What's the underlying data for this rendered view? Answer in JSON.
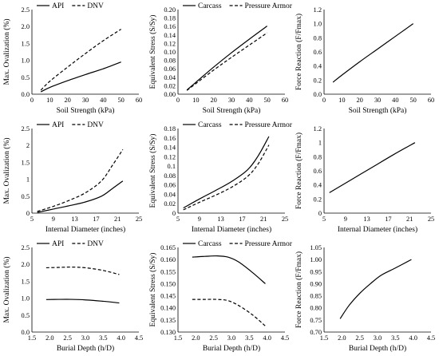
{
  "chart_data": [
    {
      "type": "line",
      "xlabel": "Soil Strength (kPa)",
      "ylabel": "Max. Ovalization (%)",
      "xlim": [
        0,
        60
      ],
      "ylim": [
        0,
        2.5
      ],
      "xticks": [
        0,
        10,
        20,
        30,
        40,
        50,
        60
      ],
      "yticks": [
        0,
        0.5,
        1,
        1.5,
        2,
        2.5
      ],
      "ytick_labels": [
        "0.0",
        "0.5",
        "1.0",
        "1.5",
        "2.0",
        "2.5"
      ],
      "grid": false,
      "legend_position": "top",
      "series": [
        {
          "name": "API",
          "dash": "solid",
          "x": [
            5,
            10,
            20,
            30,
            40,
            50
          ],
          "y": [
            0.07,
            0.2,
            0.4,
            0.58,
            0.75,
            0.95
          ]
        },
        {
          "name": "DNV",
          "dash": "dashed",
          "x": [
            5,
            10,
            20,
            30,
            40,
            50
          ],
          "y": [
            0.12,
            0.38,
            0.8,
            1.2,
            1.58,
            1.92
          ]
        }
      ]
    },
    {
      "type": "line",
      "xlabel": "Soil Strength (kPa)",
      "ylabel": "Equivalent Stress (S/Sy)",
      "xlim": [
        0,
        60
      ],
      "ylim": [
        0,
        0.2
      ],
      "xticks": [
        0,
        10,
        20,
        30,
        40,
        50,
        60
      ],
      "yticks": [
        0,
        0.02,
        0.04,
        0.06,
        0.08,
        0.1,
        0.12,
        0.14,
        0.16,
        0.18,
        0.2
      ],
      "ytick_labels": [
        "0.00",
        "0.02",
        "0.04",
        "0.06",
        "0.08",
        "0.10",
        "0.12",
        "0.14",
        "0.16",
        "0.18",
        "0.20"
      ],
      "grid": false,
      "legend_position": "top",
      "series": [
        {
          "name": "Carcass",
          "dash": "solid",
          "x": [
            5,
            10,
            20,
            30,
            40,
            50
          ],
          "y": [
            0.01,
            0.028,
            0.064,
            0.098,
            0.13,
            0.161
          ]
        },
        {
          "name": "Pressure Armor",
          "dash": "dashed",
          "x": [
            5,
            10,
            20,
            30,
            40,
            50
          ],
          "y": [
            0.009,
            0.025,
            0.057,
            0.087,
            0.116,
            0.145
          ]
        }
      ]
    },
    {
      "type": "line",
      "xlabel": "Soil Strength (kPa)",
      "ylabel": "Force Reaction (F/Fmax)",
      "xlim": [
        0,
        60
      ],
      "ylim": [
        0,
        1.2
      ],
      "xticks": [
        0,
        10,
        20,
        30,
        40,
        50,
        60
      ],
      "yticks": [
        0,
        0.2,
        0.4,
        0.6,
        0.8,
        1,
        1.2
      ],
      "ytick_labels": [
        "0.0",
        "0.2",
        "0.4",
        "0.6",
        "0.8",
        "1.0",
        "1.2"
      ],
      "grid": false,
      "series": [
        {
          "name": "",
          "dash": "solid",
          "x": [
            5,
            10,
            20,
            30,
            40,
            50
          ],
          "y": [
            0.17,
            0.27,
            0.46,
            0.64,
            0.82,
            1.0
          ]
        }
      ]
    },
    {
      "type": "line",
      "xlabel": "Internal Diameter (inches)",
      "ylabel": "Max. Ovalization (%)",
      "xlim": [
        5,
        25
      ],
      "ylim": [
        0,
        2.5
      ],
      "xticks": [
        5,
        9,
        13,
        17,
        21,
        25
      ],
      "yticks": [
        0,
        0.5,
        1,
        1.5,
        2,
        2.5
      ],
      "ytick_labels": [
        "0",
        "0.5",
        "1",
        "1.5",
        "2",
        "2.5"
      ],
      "grid": false,
      "legend_position": "top",
      "series": [
        {
          "name": "API",
          "dash": "solid",
          "x": [
            6,
            9,
            12,
            15,
            18,
            20,
            22
          ],
          "y": [
            0.02,
            0.12,
            0.22,
            0.33,
            0.5,
            0.72,
            0.95
          ]
        },
        {
          "name": "DNV",
          "dash": "dashed",
          "x": [
            6,
            9,
            12,
            15,
            18,
            20,
            22
          ],
          "y": [
            0.05,
            0.2,
            0.38,
            0.6,
            0.95,
            1.4,
            1.88
          ]
        }
      ]
    },
    {
      "type": "line",
      "xlabel": "Internal Diameter (inches)",
      "ylabel": "Equivalent Stress (S/Sy)",
      "xlim": [
        5,
        25
      ],
      "ylim": [
        0,
        0.18
      ],
      "xticks": [
        5,
        9,
        13,
        17,
        21,
        25
      ],
      "yticks": [
        0,
        0.02,
        0.04,
        0.06,
        0.08,
        0.1,
        0.12,
        0.14,
        0.16,
        0.18
      ],
      "ytick_labels": [
        "0",
        "0.02",
        "0.04",
        "0.06",
        "0.08",
        "0.1",
        "0.12",
        "0.14",
        "0.16",
        "0.18"
      ],
      "grid": false,
      "legend_position": "top",
      "series": [
        {
          "name": "Carcass",
          "dash": "solid",
          "x": [
            6,
            9,
            12,
            15,
            18,
            20,
            22
          ],
          "y": [
            0.011,
            0.03,
            0.048,
            0.067,
            0.092,
            0.122,
            0.163
          ]
        },
        {
          "name": "Pressure Armor",
          "dash": "dashed",
          "x": [
            6,
            9,
            12,
            15,
            18,
            20,
            22
          ],
          "y": [
            0.007,
            0.023,
            0.038,
            0.055,
            0.078,
            0.105,
            0.145
          ]
        }
      ]
    },
    {
      "type": "line",
      "xlabel": "Internal Diameter (inches)",
      "ylabel": "Force Reaction (F/Fmax)",
      "xlim": [
        5,
        25
      ],
      "ylim": [
        0,
        1.2
      ],
      "xticks": [
        5,
        9,
        13,
        17,
        21,
        25
      ],
      "yticks": [
        0,
        0.2,
        0.4,
        0.6,
        0.8,
        1,
        1.2
      ],
      "ytick_labels": [
        "0",
        "0.2",
        "0.4",
        "0.6",
        "0.8",
        "1",
        "1.2"
      ],
      "grid": false,
      "series": [
        {
          "name": "",
          "dash": "solid",
          "x": [
            6,
            10,
            14,
            18,
            22
          ],
          "y": [
            0.29,
            0.47,
            0.65,
            0.83,
            1.0
          ]
        }
      ]
    },
    {
      "type": "line",
      "xlabel": "Burial Depth (h/D)",
      "ylabel": "Max. Ovalization (%)",
      "xlim": [
        1.5,
        4.5
      ],
      "ylim": [
        0,
        2.5
      ],
      "xticks": [
        1.5,
        2,
        2.5,
        3,
        3.5,
        4,
        4.5
      ],
      "xtick_labels": [
        "1.5",
        "2.0",
        "2.5",
        "3.0",
        "3.5",
        "4.0",
        "4.5"
      ],
      "yticks": [
        0,
        0.5,
        1,
        1.5,
        2,
        2.5
      ],
      "ytick_labels": [
        "0.0",
        "0.5",
        "1.0",
        "1.5",
        "2.0",
        "2.5"
      ],
      "grid": false,
      "legend_position": "top",
      "series": [
        {
          "name": "API",
          "dash": "solid",
          "x": [
            1.9,
            2.25,
            2.6,
            3.0,
            3.5,
            3.95
          ],
          "y": [
            0.96,
            0.965,
            0.965,
            0.95,
            0.91,
            0.86
          ]
        },
        {
          "name": "DNV",
          "dash": "dashed",
          "x": [
            1.9,
            2.25,
            2.6,
            3.0,
            3.5,
            3.95
          ],
          "y": [
            1.9,
            1.91,
            1.92,
            1.9,
            1.82,
            1.7
          ]
        }
      ]
    },
    {
      "type": "line",
      "xlabel": "Burial Depth (h/D)",
      "ylabel": "Equivalent Stress (S/Sy)",
      "xlim": [
        1.5,
        4.5
      ],
      "ylim": [
        0.13,
        0.165
      ],
      "xticks": [
        1.5,
        2,
        2.5,
        3,
        3.5,
        4,
        4.5
      ],
      "xtick_labels": [
        "1.5",
        "2.0",
        "2.5",
        "3.0",
        "3.5",
        "4.0",
        "4.5"
      ],
      "yticks": [
        0.13,
        0.135,
        0.14,
        0.145,
        0.15,
        0.155,
        0.16,
        0.165
      ],
      "ytick_labels": [
        "0.130",
        "0.135",
        "0.140",
        "0.145",
        "0.150",
        "0.155",
        "0.160",
        "0.165"
      ],
      "grid": false,
      "legend_position": "top",
      "series": [
        {
          "name": "Carcass",
          "dash": "solid",
          "x": [
            1.9,
            2.25,
            2.6,
            2.9,
            3.2,
            3.6,
            3.95
          ],
          "y": [
            0.161,
            0.1613,
            0.1615,
            0.161,
            0.159,
            0.1545,
            0.15
          ]
        },
        {
          "name": "Pressure Armor",
          "dash": "dashed",
          "x": [
            1.9,
            2.25,
            2.6,
            2.9,
            3.2,
            3.6,
            3.95
          ],
          "y": [
            0.1435,
            0.1435,
            0.1435,
            0.143,
            0.141,
            0.137,
            0.1325
          ]
        }
      ]
    },
    {
      "type": "line",
      "xlabel": "Burial Depth (h/D)",
      "ylabel": "Force Reaction (F/Fmax)",
      "xlim": [
        1.5,
        4.5
      ],
      "ylim": [
        0.7,
        1.05
      ],
      "xticks": [
        1.5,
        2,
        2.5,
        3,
        3.5,
        4,
        4.5
      ],
      "xtick_labels": [
        "1.5",
        "2.0",
        "2.5",
        "3.0",
        "3.5",
        "4.0",
        "4.5"
      ],
      "yticks": [
        0.7,
        0.75,
        0.8,
        0.85,
        0.9,
        0.95,
        1.0,
        1.05
      ],
      "ytick_labels": [
        "0.70",
        "0.75",
        "0.80",
        "0.85",
        "0.90",
        "0.95",
        "1.00",
        "1.05"
      ],
      "grid": false,
      "series": [
        {
          "name": "",
          "dash": "solid",
          "x": [
            1.95,
            2.2,
            2.5,
            2.8,
            3.1,
            3.5,
            3.95
          ],
          "y": [
            0.755,
            0.81,
            0.86,
            0.9,
            0.935,
            0.965,
            1.0
          ]
        }
      ]
    }
  ]
}
